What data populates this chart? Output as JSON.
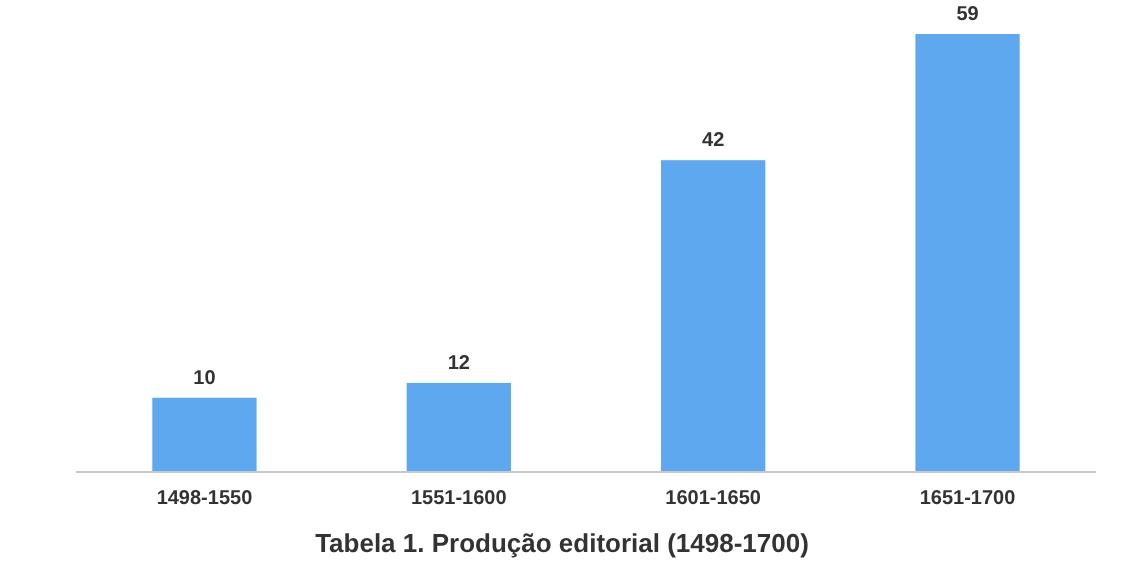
{
  "chart_data": {
    "type": "bar",
    "title": "Tabela 1. Produção editorial (1498-1700)",
    "categories": [
      "1498-1550",
      "1551-1600",
      "1601-1650",
      "1651-1700"
    ],
    "values": [
      10,
      12,
      42,
      59
    ],
    "color": "#5ea8f0",
    "data_labels": true
  }
}
